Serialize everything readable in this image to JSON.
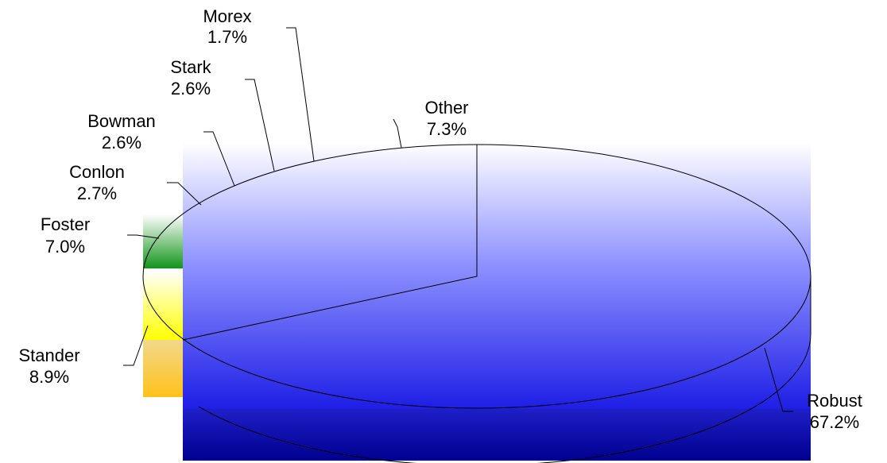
{
  "chart_data": {
    "type": "pie",
    "title": "",
    "three_d": true,
    "legend": "none",
    "slices": [
      {
        "name": "Robust",
        "value": 67.2,
        "label": "67.2%",
        "color": "#2a2ae8"
      },
      {
        "name": "Stander",
        "value": 8.9,
        "label": "8.9%",
        "color": "#ffd23a"
      },
      {
        "name": "Foster",
        "value": 7.0,
        "label": "7.0%",
        "color": "#1f9a1f"
      },
      {
        "name": "Conlon",
        "value": 2.7,
        "label": "2.7%",
        "color": "#9aa0ff"
      },
      {
        "name": "Bowman",
        "value": 2.6,
        "label": "2.6%",
        "color": "#8a90ff"
      },
      {
        "name": "Stark",
        "value": 2.6,
        "label": "2.6%",
        "color": "#7a80ff"
      },
      {
        "name": "Morex",
        "value": 1.7,
        "label": "1.7%",
        "color": "#6a70ff"
      },
      {
        "name": "Other",
        "value": 7.3,
        "label": "7.3%",
        "color": "#5a60ff"
      }
    ]
  }
}
